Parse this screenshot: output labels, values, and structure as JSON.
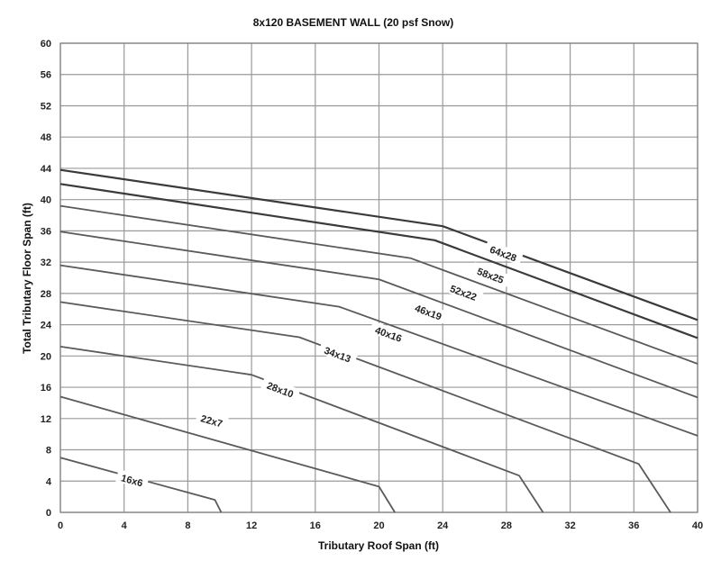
{
  "chart_data": {
    "type": "line",
    "title": "8x120 BASEMENT WALL (20 psf Snow)",
    "xlabel": "Tributary Roof Span (ft)",
    "ylabel": "Total Tributary Floor Span (ft)",
    "xlim": [
      0,
      40
    ],
    "ylim": [
      0,
      60
    ],
    "xticks": [
      0,
      4,
      8,
      12,
      16,
      20,
      24,
      28,
      32,
      36,
      40
    ],
    "yticks": [
      0,
      4,
      8,
      12,
      16,
      20,
      24,
      28,
      32,
      36,
      40,
      44,
      48,
      52,
      56,
      60
    ],
    "grid": true,
    "series": [
      {
        "name": "16x6",
        "x": [
          0,
          9.7,
          10.1
        ],
        "y": [
          7.0,
          1.6,
          0
        ]
      },
      {
        "name": "22x7",
        "x": [
          0,
          20.0,
          21.0
        ],
        "y": [
          14.8,
          3.3,
          0
        ]
      },
      {
        "name": "28x10",
        "x": [
          0,
          12.0,
          28.8,
          30.3
        ],
        "y": [
          21.2,
          17.6,
          4.7,
          0
        ]
      },
      {
        "name": "34x13",
        "x": [
          0,
          15.0,
          36.3,
          38.3
        ],
        "y": [
          26.9,
          22.4,
          6.2,
          0
        ]
      },
      {
        "name": "40x16",
        "x": [
          0,
          17.5,
          40
        ],
        "y": [
          31.6,
          26.3,
          9.8
        ]
      },
      {
        "name": "46x19",
        "x": [
          0,
          20.0,
          40
        ],
        "y": [
          35.9,
          29.8,
          14.7
        ]
      },
      {
        "name": "52x22",
        "x": [
          0,
          22.0,
          40
        ],
        "y": [
          39.2,
          32.5,
          19.0
        ]
      },
      {
        "name": "58x25",
        "x": [
          0,
          23.5,
          40
        ],
        "y": [
          42.0,
          34.8,
          22.3
        ]
      },
      {
        "name": "64x28",
        "x": [
          0,
          24.0,
          40
        ],
        "y": [
          43.8,
          36.6,
          24.6
        ]
      }
    ]
  }
}
